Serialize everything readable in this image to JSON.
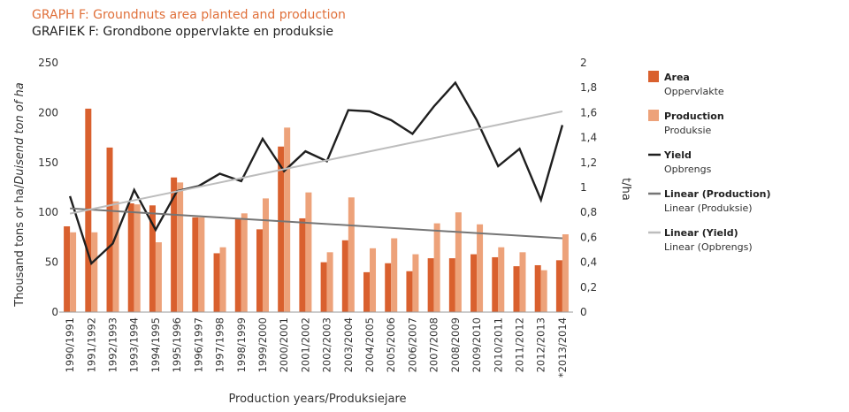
{
  "titles": {
    "en": "GRAPH F: Groundnuts area planted and production",
    "af": "GRAFIEK F: Grondbone oppervlakte en produksie"
  },
  "chart_data": {
    "type": "bar",
    "categories": [
      "1990/1991",
      "1991/1992",
      "1992/1993",
      "1993/1994",
      "1994/1995",
      "1995/1996",
      "1996/1997",
      "1997/1998",
      "1998/1999",
      "1999/2000",
      "2000/2001",
      "2001/2002",
      "2002/2003",
      "2003/2004",
      "2004/2005",
      "2005/2006",
      "2006/2007",
      "2007/2008",
      "2008/2009",
      "2009/2010",
      "2010/2011",
      "2011/2012",
      "2012/2013",
      "*2013/2014"
    ],
    "series": [
      {
        "name": "Area",
        "name_af": "Oppervlakte",
        "type": "bar",
        "axis": "left",
        "color": "#d9602e",
        "values": [
          86,
          204,
          165,
          109,
          107,
          135,
          95,
          59,
          94,
          83,
          166,
          94,
          50,
          72,
          40,
          49,
          41,
          54,
          54,
          58,
          55,
          46,
          47,
          52
        ]
      },
      {
        "name": "Production",
        "name_af": "Produksie",
        "type": "bar",
        "axis": "left",
        "color": "#eda27a",
        "values": [
          80,
          80,
          111,
          108,
          70,
          130,
          95,
          65,
          99,
          114,
          185,
          120,
          60,
          115,
          64,
          74,
          58,
          89,
          100,
          88,
          65,
          60,
          42,
          78
        ]
      },
      {
        "name": "Yield",
        "name_af": "Opbrengs",
        "type": "line",
        "axis": "right",
        "color": "#1f1f1f",
        "values": [
          0.93,
          0.39,
          0.55,
          0.98,
          0.66,
          0.97,
          1.01,
          1.11,
          1.05,
          1.39,
          1.13,
          1.29,
          1.21,
          1.62,
          1.61,
          1.54,
          1.43,
          1.65,
          1.84,
          1.54,
          1.17,
          1.31,
          0.9,
          1.5
        ]
      },
      {
        "name": "Linear (Production)",
        "name_af": "Linear (Produksie)",
        "type": "trendline",
        "axis": "left",
        "color": "#757575",
        "start": 104,
        "end": 74
      },
      {
        "name": "Linear (Yield)",
        "name_af": "Linear (Opbrengs)",
        "type": "trendline",
        "axis": "right",
        "color": "#bdbdbd",
        "start": 0.79,
        "end": 1.61
      }
    ],
    "y_left": {
      "min": 0,
      "max": 250,
      "ticks": [
        "0",
        "50",
        "100",
        "150",
        "200",
        "250"
      ],
      "label": "Thousand tons or ha/",
      "label_italic": "Duisend ton of ha"
    },
    "y_right": {
      "min": 0,
      "max": 2,
      "ticks": [
        "0",
        "0,2",
        "0,4",
        "0,6",
        "0,8",
        "1",
        "1,2",
        "1,4",
        "1,6",
        "1,8",
        "2"
      ],
      "label": "t/ha"
    },
    "x_label": "Production years/",
    "x_label_af": "Produksiejare",
    "grid": false,
    "legend_position": "right"
  }
}
